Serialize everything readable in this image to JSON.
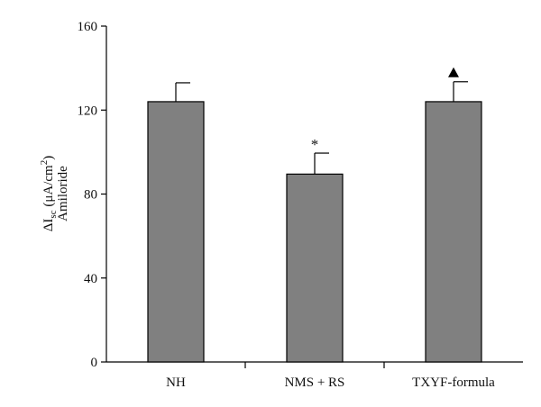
{
  "chart_data": {
    "type": "bar",
    "title": "",
    "xlabel": "",
    "ylabel": {
      "line1": "ΔI",
      "line1_sub": "sc",
      "line1_rest": " (μA/cm",
      "line1_sup": "2",
      "line1_end": ")",
      "line2": "Amiloride"
    },
    "categories": [
      "NH",
      "NMS + RS",
      "TXYF-formula"
    ],
    "values": [
      124,
      89.5,
      124
    ],
    "errors": [
      9,
      10,
      9.5
    ],
    "markers": [
      "",
      "*",
      "triangle"
    ],
    "ylim": [
      0,
      160
    ],
    "yticks": [
      0,
      40,
      80,
      120,
      160
    ],
    "bar_color": "#808080",
    "grid": false
  }
}
